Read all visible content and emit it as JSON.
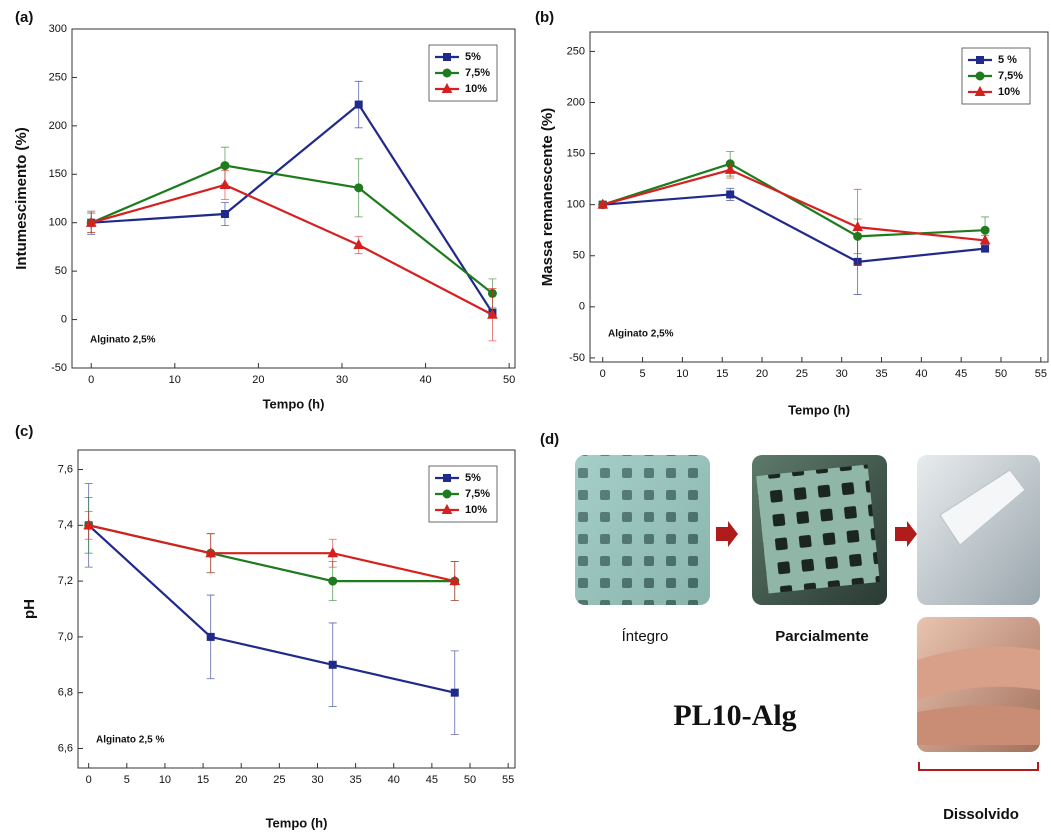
{
  "chart_data": [
    {
      "type": "line",
      "panel_label": "(a)",
      "xlabel": "Tempo (h)",
      "ylabel": "Intumescimento (%)",
      "annotation": "Alginato 2,5%",
      "x": [
        0,
        16,
        32,
        48
      ],
      "xlim": [
        -2.3,
        50.7
      ],
      "xticks": [
        0,
        10,
        20,
        30,
        40,
        50
      ],
      "ylim": [
        -50,
        300
      ],
      "yticks": [
        -50,
        0,
        50,
        100,
        150,
        200,
        250,
        300
      ],
      "legend": "upper right",
      "series": [
        {
          "name": "5%",
          "color": "#1f2a8a",
          "marker": "square",
          "values": [
            100,
            109,
            222,
            7
          ],
          "errors": [
            12,
            12,
            24,
            3
          ]
        },
        {
          "name": "7,5%",
          "color": "#1e7b1e",
          "marker": "circle",
          "values": [
            100,
            159,
            136,
            27
          ],
          "errors": [
            10,
            19,
            30,
            15
          ]
        },
        {
          "name": "10%",
          "color": "#d62020",
          "marker": "triangle",
          "values": [
            100,
            139,
            77,
            5
          ],
          "errors": [
            10,
            15,
            9,
            27
          ]
        }
      ]
    },
    {
      "type": "line",
      "panel_label": "(b)",
      "xlabel": "Tempo (h)",
      "ylabel": "Massa remanescente (%)",
      "annotation": "Alginato 2,5%",
      "x": [
        0,
        16,
        32,
        48
      ],
      "xlim": [
        -1.6,
        55.9
      ],
      "xticks": [
        0,
        5,
        10,
        15,
        20,
        25,
        30,
        35,
        40,
        45,
        50,
        55
      ],
      "ylim": [
        -54,
        269
      ],
      "yticks": [
        -50,
        0,
        50,
        100,
        150,
        200,
        250
      ],
      "legend": "upper right",
      "series": [
        {
          "name": "5 %",
          "color": "#1f2a8a",
          "marker": "square",
          "values": [
            100,
            110,
            44,
            57
          ],
          "errors": [
            3,
            6,
            32,
            3
          ]
        },
        {
          "name": "7,5%",
          "color": "#1e7b1e",
          "marker": "circle",
          "values": [
            100,
            140,
            69,
            75
          ],
          "errors": [
            3,
            12,
            17,
            13
          ]
        },
        {
          "name": "10%",
          "color": "#d62020",
          "marker": "triangle",
          "values": [
            100,
            134,
            78,
            65
          ],
          "errors": [
            3,
            8,
            37,
            5
          ]
        }
      ]
    },
    {
      "type": "line",
      "panel_label": "(c)",
      "xlabel": "Tempo (h)",
      "ylabel": "pH",
      "annotation": "Alginato 2,5 %",
      "x": [
        0,
        16,
        32,
        48
      ],
      "xlim": [
        -1.4,
        55.9
      ],
      "xticks": [
        0,
        5,
        10,
        15,
        20,
        25,
        30,
        35,
        40,
        45,
        50,
        55
      ],
      "ylim": [
        6.53,
        7.67
      ],
      "yticks": [
        {
          "value": 6.6,
          "label": "6,6"
        },
        {
          "value": 6.8,
          "label": "6,8"
        },
        {
          "value": 7.0,
          "label": "7,0"
        },
        {
          "value": 7.2,
          "label": "7,2"
        },
        {
          "value": 7.4,
          "label": "7,4"
        },
        {
          "value": 7.6,
          "label": "7,6"
        }
      ],
      "legend": "upper right",
      "series": [
        {
          "name": "5%",
          "color": "#1f2a8a",
          "marker": "square",
          "values": [
            7.4,
            7.0,
            6.9,
            6.8
          ],
          "errors": [
            0.15,
            0.15,
            0.15,
            0.15
          ]
        },
        {
          "name": "7,5%",
          "color": "#1e7b1e",
          "marker": "circle",
          "values": [
            7.4,
            7.3,
            7.2,
            7.2
          ],
          "errors": [
            0.1,
            0.07,
            0.07,
            0.07
          ]
        },
        {
          "name": "10%",
          "color": "#d62020",
          "marker": "triangle",
          "values": [
            7.4,
            7.3,
            7.3,
            7.2
          ],
          "errors": [
            0.05,
            0.07,
            0.05,
            0.07
          ]
        }
      ]
    }
  ],
  "panel_d": {
    "label": "(d)",
    "stage_1": "Íntegro",
    "stage_2": "Parcialmente",
    "sample": "PL10-Alg",
    "stage_3": "Dissolvido"
  }
}
